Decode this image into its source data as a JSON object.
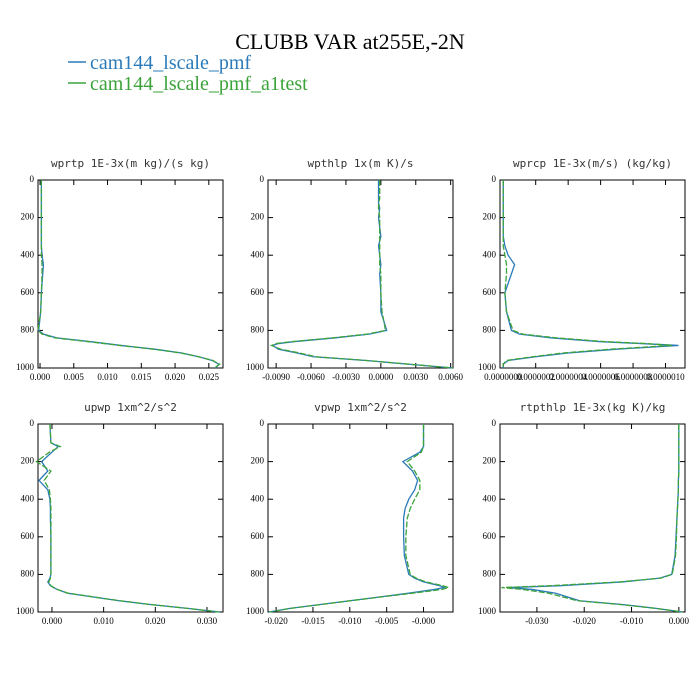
{
  "title": "CLUBB VAR at255E,-2N",
  "chart_data": [
    {
      "type": "line",
      "title": "wprtp  1E-3x(m kg)/(s kg)",
      "y": [
        0,
        100,
        120,
        150,
        200,
        250,
        300,
        350,
        400,
        450,
        500,
        600,
        700,
        800,
        820,
        840,
        860,
        870,
        880,
        900,
        920,
        940,
        960,
        980,
        1000
      ],
      "ylim": [
        1000,
        0
      ],
      "yticks": [
        0,
        200,
        400,
        600,
        800,
        1000
      ],
      "xlim": [
        -0.0003,
        0.0271
      ],
      "xticks": [
        {
          "value": 0,
          "label": "0.000"
        },
        0.005,
        {
          "value": 0.01,
          "label": "0.010"
        },
        0.015,
        {
          "value": 0.02,
          "label": "0.020"
        },
        0.025
      ],
      "series": [
        {
          "name": "cam144_lscale_pmf",
          "color": "#2b7bba",
          "values": [
            0.0002,
            0.0002,
            0.0002,
            0.0002,
            0.0002,
            0.0002,
            0.0002,
            0.0002,
            0.0003,
            0.0005,
            0.0004,
            0.0002,
            0.0001,
            -0.0002,
            0.0005,
            0.0025,
            0.0075,
            0.0098,
            0.012,
            0.017,
            0.021,
            0.0235,
            0.0255,
            0.0265,
            0.026
          ]
        },
        {
          "name": "cam144_lscale_pmf_a1test",
          "color": "#3ba33a",
          "values": [
            0.0002,
            0.0002,
            0.0002,
            0.0002,
            0.0002,
            0.0002,
            0.0002,
            0.0002,
            0.0002,
            0.0003,
            0.0003,
            0.0002,
            0.0001,
            -0.0003,
            0.0003,
            0.0022,
            0.0072,
            0.0095,
            0.0118,
            0.0168,
            0.0208,
            0.0235,
            0.0256,
            0.0266,
            0.0258
          ]
        }
      ]
    },
    {
      "type": "line",
      "title": "wpthlp  1x(m K)/s",
      "y": [
        0,
        100,
        120,
        150,
        200,
        250,
        300,
        350,
        400,
        450,
        500,
        600,
        700,
        800,
        820,
        840,
        860,
        870,
        880,
        900,
        920,
        940,
        960,
        980,
        1000
      ],
      "ylim": [
        1000,
        0
      ],
      "yticks": [
        0,
        200,
        400,
        600,
        800,
        1000
      ],
      "xlim": [
        -0.0097,
        0.0062
      ],
      "xticks": [
        {
          "value": -0.009,
          "label": "-0.0090"
        },
        {
          "value": -0.006,
          "label": "-0.0060"
        },
        {
          "value": -0.003,
          "label": "-0.0030"
        },
        {
          "value": 0,
          "label": "0.0000"
        },
        {
          "value": 0.003,
          "label": "0.0030"
        },
        {
          "value": 0.006,
          "label": "0.0060"
        }
      ],
      "series": [
        {
          "name": "cam144_lscale_pmf",
          "color": "#2b7bba",
          "values": [
            -0.0002,
            -0.0002,
            -0.0002,
            -0.0001,
            -0.0002,
            -0.0001,
            0.0,
            -0.0002,
            -0.0001,
            0.0,
            -0.0001,
            0.0,
            0.0,
            0.0005,
            -0.001,
            -0.004,
            -0.0075,
            -0.0088,
            -0.0093,
            -0.0088,
            -0.0072,
            -0.0058,
            -0.0013,
            0.0024,
            0.0062
          ]
        },
        {
          "name": "cam144_lscale_pmf_a1test",
          "color": "#3ba33a",
          "values": [
            -0.0001,
            -0.0001,
            -0.0002,
            -0.0002,
            -0.0001,
            -0.0001,
            -0.0001,
            -0.0001,
            -0.0001,
            -0.0001,
            0.0,
            0.0,
            0.0001,
            0.0004,
            -0.0012,
            -0.0042,
            -0.0077,
            -0.009,
            -0.0094,
            -0.0086,
            -0.007,
            -0.0056,
            -0.0012,
            0.0025,
            0.0062
          ]
        }
      ]
    },
    {
      "type": "line",
      "title": "wprcp  1E-3x(m/s) (kg/kg)",
      "y": [
        0,
        100,
        120,
        150,
        200,
        250,
        300,
        350,
        400,
        450,
        500,
        600,
        700,
        800,
        820,
        840,
        860,
        870,
        880,
        900,
        920,
        940,
        960,
        980,
        1000
      ],
      "ylim": [
        1000,
        0
      ],
      "yticks": [
        0,
        200,
        400,
        600,
        800,
        1000
      ],
      "xlim": [
        -2e-08,
        1.12e-06
      ],
      "xticks": [
        {
          "value": 0,
          "label": "0.0000000"
        },
        {
          "value": 2e-07,
          "label": "0.0000002"
        },
        {
          "value": 4e-07,
          "label": "0.0000004"
        },
        {
          "value": 6e-07,
          "label": "0.0000006"
        },
        {
          "value": 8e-07,
          "label": "0.0000008"
        },
        {
          "value": 1e-06,
          "label": "0.0000010"
        }
      ],
      "series": [
        {
          "name": "cam144_lscale_pmf",
          "color": "#2b7bba",
          "values": [
            0,
            0,
            0,
            0,
            0,
            0,
            0,
            1e-08,
            3e-08,
            7e-08,
            5e-08,
            1e-08,
            2e-08,
            5e-08,
            1e-07,
            3e-07,
            6e-07,
            8.5e-07,
            1.08e-06,
            7e-07,
            4e-07,
            2e-07,
            3e-08,
            0,
            0
          ]
        },
        {
          "name": "cam144_lscale_pmf_a1test",
          "color": "#3ba33a",
          "values": [
            0,
            0,
            0,
            0,
            0,
            0,
            0,
            0,
            1e-08,
            2e-08,
            2e-08,
            1e-08,
            2e-08,
            6e-08,
            1.2e-07,
            3.3e-07,
            6.3e-07,
            8.8e-07,
            1.04e-06,
            6.6e-07,
            3.7e-07,
            1.8e-07,
            2e-08,
            0,
            0
          ]
        }
      ]
    },
    {
      "type": "line",
      "title": "upwp  1xm^2/s^2",
      "y": [
        0,
        100,
        120,
        150,
        200,
        250,
        300,
        350,
        400,
        450,
        500,
        600,
        700,
        800,
        820,
        840,
        860,
        870,
        880,
        900,
        920,
        940,
        960,
        980,
        1000
      ],
      "ylim": [
        1000,
        0
      ],
      "yticks": [
        0,
        200,
        400,
        600,
        800,
        1000
      ],
      "xlim": [
        -0.0027,
        0.0331
      ],
      "xticks": [
        {
          "value": 0,
          "label": "0.000"
        },
        {
          "value": 0.01,
          "label": "0.010"
        },
        {
          "value": 0.02,
          "label": "0.020"
        },
        {
          "value": 0.03,
          "label": "0.030"
        }
      ],
      "series": [
        {
          "name": "cam144_lscale_pmf",
          "color": "#2b7bba",
          "values": [
            -0.0004,
            -0.0002,
            0.0012,
            0.0,
            -0.002,
            -0.0008,
            -0.0025,
            -0.0008,
            -0.0004,
            -0.0003,
            -0.0003,
            -0.0002,
            -0.0002,
            -0.0002,
            -0.0004,
            -0.0008,
            -0.0003,
            0.0003,
            0.001,
            0.003,
            0.008,
            0.013,
            0.019,
            0.026,
            0.0325
          ]
        },
        {
          "name": "cam144_lscale_pmf_a1test",
          "color": "#3ba33a",
          "values": [
            -0.0004,
            -0.0002,
            0.0016,
            -0.0005,
            -0.003,
            -0.0002,
            -0.0015,
            -0.0005,
            -0.0003,
            -0.0002,
            -0.0002,
            -0.0002,
            -0.0002,
            -0.0002,
            -0.0003,
            -0.0006,
            -0.0002,
            0.0004,
            0.0011,
            0.0031,
            0.0081,
            0.0131,
            0.019,
            0.026,
            0.0323
          ]
        }
      ]
    },
    {
      "type": "line",
      "title": "vpwp  1xm^2/s^2",
      "y": [
        0,
        100,
        120,
        150,
        200,
        250,
        300,
        350,
        400,
        450,
        500,
        600,
        700,
        800,
        820,
        840,
        860,
        870,
        880,
        900,
        920,
        940,
        960,
        980,
        1000
      ],
      "ylim": [
        1000,
        0
      ],
      "yticks": [
        0,
        200,
        400,
        600,
        800,
        1000
      ],
      "xlim": [
        -0.0211,
        0.004
      ],
      "xticks": [
        {
          "value": -0.02,
          "label": "-0.020"
        },
        -0.015,
        {
          "value": -0.01,
          "label": "-0.010"
        },
        -0.005,
        {
          "value": 0,
          "label": "-0.000"
        }
      ],
      "series": [
        {
          "name": "cam144_lscale_pmf",
          "color": "#2b7bba",
          "values": [
            0,
            0,
            0,
            -0.0005,
            -0.0028,
            -0.0015,
            -0.0008,
            -0.0012,
            -0.002,
            -0.0025,
            -0.0027,
            -0.0027,
            -0.0026,
            -0.002,
            -0.0012,
            0.0,
            0.0022,
            0.0028,
            0.0015,
            -0.002,
            -0.006,
            -0.01,
            -0.014,
            -0.018,
            -0.021
          ]
        },
        {
          "name": "cam144_lscale_pmf_a1test",
          "color": "#3ba33a",
          "values": [
            0,
            0,
            0,
            -0.0003,
            -0.0022,
            -0.0012,
            -0.0005,
            -0.0005,
            -0.0012,
            -0.0018,
            -0.0022,
            -0.0024,
            -0.0024,
            -0.0018,
            -0.001,
            0.0003,
            0.0026,
            0.0034,
            0.0025,
            -0.0015,
            -0.0058,
            -0.0099,
            -0.0139,
            -0.0179,
            -0.0209
          ]
        }
      ]
    },
    {
      "type": "line",
      "title": "rtpthlp  1E-3x(kg K)/kg",
      "y": [
        0,
        100,
        120,
        150,
        200,
        250,
        300,
        350,
        400,
        450,
        500,
        600,
        700,
        800,
        820,
        840,
        860,
        870,
        880,
        900,
        920,
        940,
        960,
        980,
        1000
      ],
      "ylim": [
        1000,
        0
      ],
      "yticks": [
        0,
        200,
        400,
        600,
        800,
        1000
      ],
      "xlim": [
        -0.0378,
        0.0013
      ],
      "xticks": [
        {
          "value": -0.03,
          "label": "-0.030"
        },
        {
          "value": -0.02,
          "label": "-0.020"
        },
        {
          "value": -0.01,
          "label": "-0.010"
        },
        {
          "value": 0,
          "label": "0.000"
        }
      ],
      "series": [
        {
          "name": "cam144_lscale_pmf",
          "color": "#2b7bba",
          "values": [
            0,
            0,
            0,
            0,
            0,
            0,
            -0.0001,
            -0.0001,
            -0.0002,
            -0.0003,
            -0.0004,
            -0.0006,
            -0.0008,
            -0.0015,
            -0.004,
            -0.012,
            -0.025,
            -0.036,
            -0.031,
            -0.026,
            -0.0235,
            -0.021,
            -0.012,
            -0.005,
            0.0008
          ]
        },
        {
          "name": "cam144_lscale_pmf_a1test",
          "color": "#3ba33a",
          "values": [
            0,
            0,
            0,
            0,
            0,
            0,
            -0.0001,
            -0.0001,
            -0.0002,
            -0.0003,
            -0.0004,
            -0.0005,
            -0.0007,
            -0.0014,
            -0.0038,
            -0.0125,
            -0.027,
            -0.0375,
            -0.033,
            -0.0275,
            -0.0245,
            -0.0215,
            -0.0125,
            -0.0052,
            0.0008
          ]
        }
      ]
    }
  ]
}
